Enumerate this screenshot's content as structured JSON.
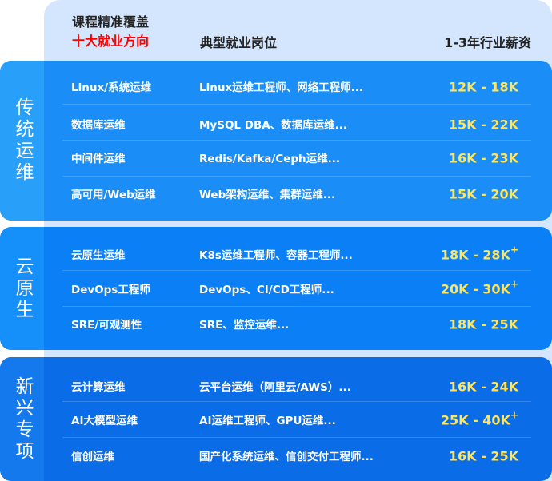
{
  "header": {
    "line1": "课程精准覆盖",
    "line2": "十大就业方向",
    "col2": "典型就业岗位",
    "col3": "1-3年行业薪资"
  },
  "colors": {
    "header_bg": "#d4e6fd",
    "accent_red": "#ff0000",
    "salary": "#ffe45c"
  },
  "groups": [
    {
      "label": "传统运维",
      "rows": [
        {
          "direction": "Linux/系统运维",
          "jobs": "Linux运维工程师、网络工程师...",
          "salary": "12K - 18K",
          "plus": ""
        },
        {
          "direction": "数据库运维",
          "jobs": "MySQL DBA、数据库运维...",
          "salary": "15K - 22K",
          "plus": ""
        },
        {
          "direction": "中间件运维",
          "jobs": "Redis/Kafka/Ceph运维...",
          "salary": "16K - 23K",
          "plus": ""
        },
        {
          "direction": "高可用/Web运维",
          "jobs": "Web架构运维、集群运维...",
          "salary": "15K - 20K",
          "plus": ""
        }
      ]
    },
    {
      "label": "云原生",
      "rows": [
        {
          "direction": "云原生运维",
          "jobs": "K8s运维工程师、容器工程师...",
          "salary": "18K - 28K",
          "plus": "+"
        },
        {
          "direction": "DevOps工程师",
          "jobs": "DevOps、CI/CD工程师...",
          "salary": "20K - 30K",
          "plus": "+"
        },
        {
          "direction": "SRE/可观测性",
          "jobs": "SRE、监控运维...",
          "salary": "18K - 25K",
          "plus": ""
        }
      ]
    },
    {
      "label": "新兴专项",
      "rows": [
        {
          "direction": "云计算运维",
          "jobs": "云平台运维（阿里云/AWS）...",
          "salary": "16K - 24K",
          "plus": ""
        },
        {
          "direction": "AI大模型运维",
          "jobs": "AI运维工程师、GPU运维...",
          "salary": "25K - 40K",
          "plus": "+"
        },
        {
          "direction": "信创运维",
          "jobs": "国产化系统运维、信创交付工程师...",
          "salary": "16K - 25K",
          "plus": ""
        }
      ]
    }
  ]
}
